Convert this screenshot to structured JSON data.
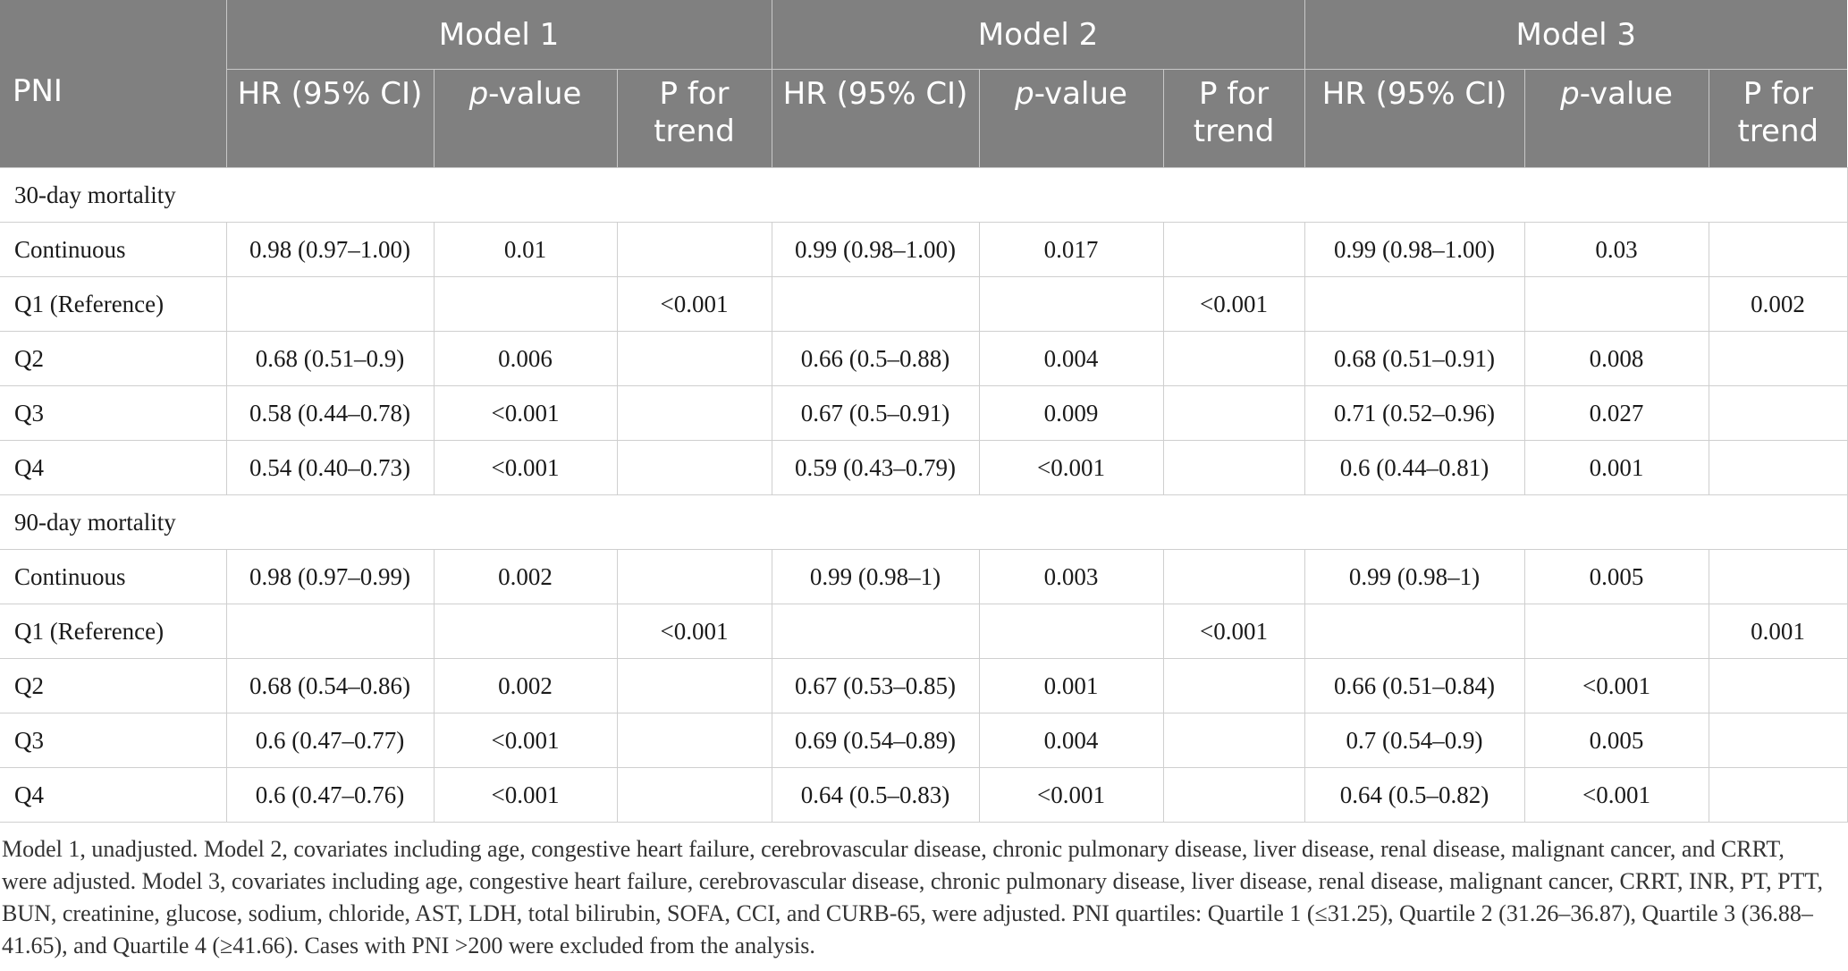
{
  "header": {
    "first_col": "PNI",
    "models": [
      "Model 1",
      "Model 2",
      "Model 3"
    ],
    "sub": {
      "hr": "HR (95% CI)",
      "p_prefix": "p",
      "p_suffix": "-value",
      "trend": "P for trend"
    }
  },
  "sections": [
    {
      "title": "30-day mortality",
      "rows": [
        {
          "label": "Continuous",
          "cells": [
            "0.98 (0.97–1.00)",
            "0.01",
            "",
            "0.99 (0.98–1.00)",
            "0.017",
            "",
            "0.99 (0.98–1.00)",
            "0.03",
            ""
          ]
        },
        {
          "label": "Q1 (Reference)",
          "cells": [
            "",
            "",
            "<0.001",
            "",
            "",
            "<0.001",
            "",
            "",
            "0.002"
          ]
        },
        {
          "label": "Q2",
          "cells": [
            "0.68 (0.51–0.9)",
            "0.006",
            "",
            "0.66 (0.5–0.88)",
            "0.004",
            "",
            "0.68 (0.51–0.91)",
            "0.008",
            ""
          ]
        },
        {
          "label": "Q3",
          "cells": [
            "0.58 (0.44–0.78)",
            "<0.001",
            "",
            "0.67 (0.5–0.91)",
            "0.009",
            "",
            "0.71 (0.52–0.96)",
            "0.027",
            ""
          ]
        },
        {
          "label": "Q4",
          "cells": [
            "0.54 (0.40–0.73)",
            "<0.001",
            "",
            "0.59 (0.43–0.79)",
            "<0.001",
            "",
            "0.6 (0.44–0.81)",
            "0.001",
            ""
          ]
        }
      ]
    },
    {
      "title": "90-day mortality",
      "rows": [
        {
          "label": "Continuous",
          "cells": [
            "0.98 (0.97–0.99)",
            "0.002",
            "",
            "0.99 (0.98–1)",
            "0.003",
            "",
            "0.99 (0.98–1)",
            "0.005",
            ""
          ]
        },
        {
          "label": "Q1 (Reference)",
          "cells": [
            "",
            "",
            "<0.001",
            "",
            "",
            "<0.001",
            "",
            "",
            "0.001"
          ]
        },
        {
          "label": "Q2",
          "cells": [
            "0.68 (0.54–0.86)",
            "0.002",
            "",
            "0.67 (0.53–0.85)",
            "0.001",
            "",
            "0.66 (0.51–0.84)",
            "<0.001",
            ""
          ]
        },
        {
          "label": "Q3",
          "cells": [
            "0.6 (0.47–0.77)",
            "<0.001",
            "",
            "0.69 (0.54–0.89)",
            "0.004",
            "",
            "0.7 (0.54–0.9)",
            "0.005",
            ""
          ]
        },
        {
          "label": "Q4",
          "cells": [
            "0.6 (0.47–0.76)",
            "<0.001",
            "",
            "0.64 (0.5–0.83)",
            "<0.001",
            "",
            "0.64 (0.5–0.82)",
            "<0.001",
            ""
          ]
        }
      ]
    }
  ],
  "footnote": "Model 1, unadjusted. Model 2, covariates including age, congestive heart failure, cerebrovascular disease, chronic pulmonary disease, liver disease, renal disease, malignant cancer, and CRRT, were adjusted. Model 3, covariates including age, congestive heart failure, cerebrovascular disease, chronic pulmonary disease, liver disease, renal disease, malignant cancer, CRRT, INR, PT, PTT, BUN, creatinine, glucose, sodium, chloride, AST, LDH, total bilirubin, SOFA, CCI, and CURB-65, were adjusted. PNI quartiles: Quartile 1 (≤31.25), Quartile 2 (31.26–36.87), Quartile 3 (36.88–41.65), and Quartile 4 (≥41.66). Cases with PNI >200 were excluded from the analysis."
}
